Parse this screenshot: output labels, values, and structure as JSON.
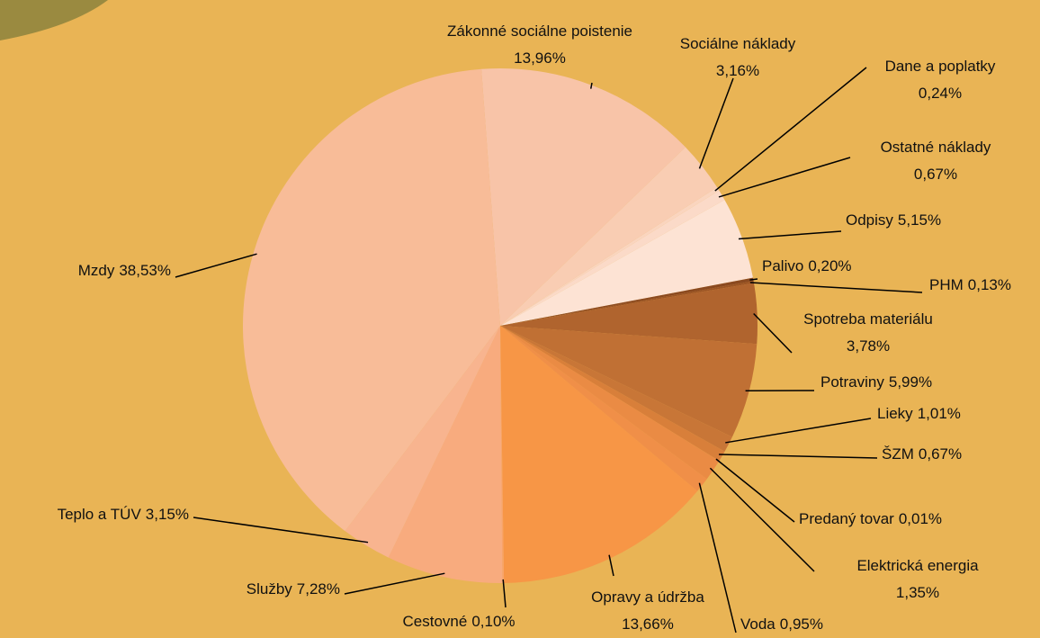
{
  "chart_data": {
    "type": "pie",
    "categories": [
      "Zákonné sociálne poistenie",
      "Sociálne náklady",
      "Dane a poplatky",
      "Ostatné náklady",
      "Odpisy",
      "Palivo",
      "PHM",
      "Spotreba materiálu",
      "Potraviny",
      "Lieky",
      "ŠZM",
      "Predaný tovar",
      "Elektrická energia",
      "Voda",
      "Opravy a údržba",
      "Cestovné",
      "Služby",
      "Teplo a TÚV",
      "Mzdy"
    ],
    "values": [
      13.96,
      3.16,
      0.24,
      0.67,
      5.15,
      0.2,
      0.13,
      3.78,
      5.99,
      1.01,
      0.67,
      0.01,
      1.35,
      0.95,
      13.66,
      0.1,
      7.28,
      3.15,
      38.53
    ],
    "value_labels": [
      "13,96%",
      "3,16%",
      "0,24%",
      "0,67%",
      "5,15%",
      "0,20%",
      "0,13%",
      "3,78%",
      "5,99%",
      "1,01%",
      "0,67%",
      "0,01%",
      "1,35%",
      "0,95%",
      "13,66%",
      "0,10%",
      "7,28%",
      "3,15%",
      "38,53%"
    ],
    "colors": [
      "#f8c4a8",
      "#f9cdb3",
      "#fad5bf",
      "#fbdac8",
      "#fde3d4",
      "#8b4a20",
      "#9c5525",
      "#b0642e",
      "#c07034",
      "#c87637",
      "#d87f3a",
      "#e08540",
      "#ea8b44",
      "#f08f48",
      "#f79646",
      "#f9a36a",
      "#f8ab7e",
      "#f8b48f",
      "#f8bc98"
    ]
  }
}
